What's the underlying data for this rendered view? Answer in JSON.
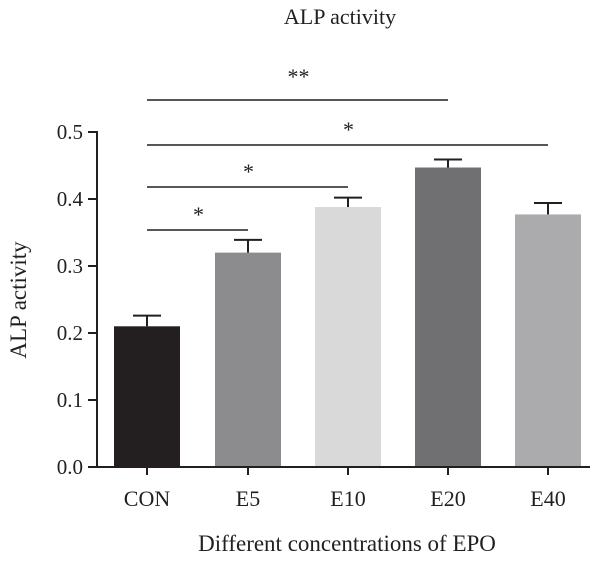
{
  "chart_data": {
    "type": "bar",
    "title": "ALP activity",
    "xlabel": "Different concentrations of EPO",
    "ylabel": "ALP activity",
    "ylim": [
      0,
      0.5
    ],
    "yticks": [
      "0.0",
      "0.1",
      "0.2",
      "0.3",
      "0.4",
      "0.5"
    ],
    "categories": [
      "CON",
      "E5",
      "E10",
      "E20",
      "E40"
    ],
    "values": [
      0.21,
      0.32,
      0.388,
      0.447,
      0.377
    ],
    "errors": [
      0.016,
      0.019,
      0.014,
      0.012,
      0.017
    ],
    "bar_colors": [
      "#231f20",
      "#8c8c8e",
      "#d9d9da",
      "#707072",
      "#ababad"
    ],
    "significance": [
      {
        "from": "CON",
        "to": "E5",
        "label": "*"
      },
      {
        "from": "CON",
        "to": "E10",
        "label": "*"
      },
      {
        "from": "CON",
        "to": "E20",
        "label": "**"
      },
      {
        "from": "CON",
        "to": "E40",
        "label": "*"
      }
    ],
    "grid": false
  }
}
